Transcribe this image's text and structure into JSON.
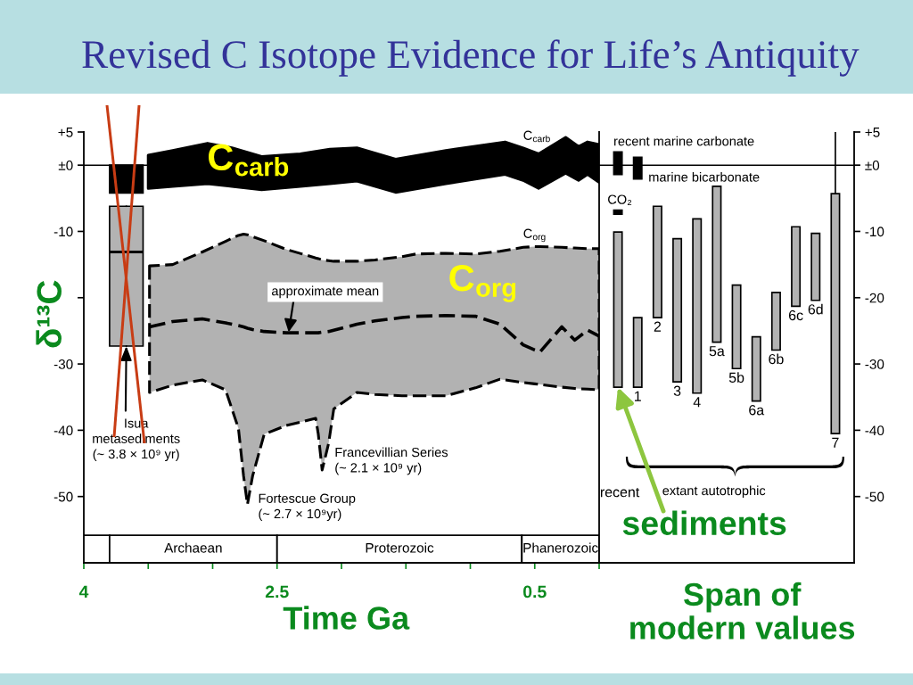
{
  "chart_data": [
    {
      "type": "line",
      "title": "Revised C Isotope Evidence for Life’s Antiquity",
      "xlabel": "Time Ga",
      "ylabel": "δ¹³C",
      "xlim": [
        4,
        0
      ],
      "xticks": [
        4,
        {
          "value": 3.5,
          "label": null
        },
        {
          "value": 3,
          "label": null
        },
        2.5,
        {
          "value": 2,
          "label": null
        },
        {
          "value": 1.5,
          "label": null
        },
        {
          "value": 1,
          "label": null
        },
        0.5,
        {
          "value": 0,
          "label": null
        }
      ],
      "ylim": [
        -60,
        5
      ],
      "yticks": [
        {
          "value": 5,
          "label": "+5"
        },
        {
          "value": 0,
          "label": "±0"
        },
        -10,
        {
          "value": -20,
          "label": null
        },
        -30,
        -40,
        -50
      ],
      "series": [
        {
          "type": "line",
          "name": "C$_{carb}$",
          "color": "#000000",
          "x": [
            3.5,
            3.31,
            3.04,
            2.85,
            2.62,
            2.32,
            2.09,
            1.88,
            1.58,
            1.19,
            0.73,
            0.59,
            0.47,
            0.26,
            0.16,
            0.09,
            0
          ],
          "values": [
            null,
            null,
            null,
            null,
            null,
            null,
            null,
            null,
            null,
            null,
            null,
            null,
            null,
            null,
            null,
            null,
            null
          ],
          "lower": [
            -3.5,
            -3.2,
            -2.8,
            -3.2,
            -3.7,
            -3.2,
            -2.8,
            -2.4,
            -4.1,
            -2.8,
            -1.4,
            -2.3,
            -3.5,
            -1.2,
            -2.3,
            -1.4,
            -2.6
          ],
          "upper": [
            1.5,
            2.2,
            3.3,
            2.6,
            1.3,
            1.7,
            2.4,
            2.6,
            0.9,
            2.2,
            3.5,
            2.6,
            1.7,
            4.2,
            2.8,
            3.5,
            3.1
          ]
        },
        {
          "type": "line",
          "name": "C$_{org}$",
          "color": "#000000",
          "line_style": "dashed",
          "x": [
            3.49,
            3.31,
            3.08,
            2.9,
            2.8,
            2.76,
            2.73,
            2.69,
            2.6,
            2.43,
            2.2,
            2.18,
            2.15,
            2.1,
            2.06,
            1.88,
            1.74,
            1.53,
            1.42,
            1.19,
            0.96,
            0.77,
            0.59,
            0.5,
            0.46,
            0.29,
            0.19,
            0.09,
            0
          ],
          "values": [
            -24.4,
            -23.6,
            -23.2,
            -23.8,
            -24.2,
            -24.4,
            -24.6,
            -24.8,
            -25.1,
            -25.3,
            -25.3,
            -25.3,
            -25.2,
            -25.1,
            -24.9,
            -24.0,
            -23.5,
            -23.0,
            -22.8,
            -22.7,
            -22.8,
            -24.0,
            -27.1,
            -27.9,
            -28.2,
            -24.4,
            -26.4,
            -24.9,
            -25.8
          ],
          "lower": [
            -34.3,
            -33.2,
            -32.4,
            -33.9,
            -39.7,
            -46.9,
            -51.2,
            -46.9,
            -40.6,
            -39.3,
            -38.2,
            -40.6,
            -46.0,
            -42.0,
            -36.8,
            -34.3,
            -34.6,
            -34.8,
            -34.8,
            -34.8,
            -33.6,
            -32.3,
            -32.8,
            -33.0,
            -33.1,
            -33.5,
            -33.7,
            -33.8,
            -33.9
          ],
          "upper": [
            -15.2,
            -15.0,
            -13.1,
            -11.5,
            -10.6,
            -10.4,
            -10.5,
            -10.8,
            -11.4,
            -12.7,
            -14.0,
            -14.1,
            -14.3,
            -14.4,
            -14.5,
            -14.5,
            -14.3,
            -13.8,
            -13.4,
            -13.3,
            -13.4,
            -13.0,
            -12.4,
            -12.3,
            -12.3,
            -12.4,
            -12.5,
            -12.6,
            -12.6
          ]
        },
        {
          "type": "bar",
          "color": "#000000",
          "x": [
            3.67
          ],
          "base": [
            -4.2
          ],
          "values": [
            4.2
          ]
        },
        {
          "type": "box",
          "color": "#b3b3b3",
          "x": [
            3.67
          ],
          "boxes": [
            {
              "low": -27.3,
              "q1": -27.3,
              "median": -13.1,
              "q3": -6.2,
              "high": -6.2
            }
          ]
        }
      ],
      "ref_lines": [
        {
          "axis": "y",
          "value": 0
        }
      ],
      "bands": [
        {
          "axis": "x",
          "from": 4,
          "to": 3.8
        },
        {
          "axis": "x",
          "from": 3.8,
          "to": 2.5,
          "label": "Archaean"
        },
        {
          "axis": "x",
          "from": 2.5,
          "to": 0.6,
          "label": "Proterozoic"
        },
        {
          "axis": "x",
          "from": 0.6,
          "to": 0,
          "label": "Phanerozoic"
        }
      ],
      "annotations": [
        "C$_{carb}$",
        "C$_{org}$",
        {
          "text": "approximate mean",
          "x": 2.41,
          "y": -25.2
        },
        {
          "text": "Isua\nmetasediments\n(~ 3.8 × 10⁹ yr)",
          "x": 3.67,
          "y": -27.3
        },
        {
          "text": "Fortescue Group\n(~ 2.7 × 10⁹yr)",
          "x": 2.73,
          "y": -51.2
        },
        {
          "text": "Francevillian Series\n(~ 2.1 × 10⁹ yr)",
          "x": 2.15,
          "y": -46.0
        }
      ]
    },
    {
      "type": "bar",
      "xlabel": "Span of\nmodern values",
      "categories": [
        "recent",
        "1",
        "2",
        "3",
        "4",
        "5a",
        "5b",
        "6a",
        "6b",
        "6c",
        "6d",
        "7"
      ],
      "ylim": [
        -60,
        5
      ],
      "yticks": [
        {
          "value": 5,
          "label": "+5"
        },
        {
          "value": 0,
          "label": "±0"
        },
        -10,
        -20,
        -30,
        -40,
        -50
      ],
      "tick_labels": "y",
      "series": [
        {
          "color": "#b3b3b3",
          "base": [
            -33.5,
            -33.5,
            -23.0,
            -32.7,
            -34.4,
            -26.7,
            -30.7,
            -35.6,
            -27.9,
            -21.3,
            -20.4,
            -40.5
          ],
          "values": [
            23.4,
            10.5,
            16.8,
            21.6,
            26.3,
            23.5,
            12.6,
            9.7,
            8.7,
            12.0,
            10.1,
            36.2
          ],
          "errors": [
            null,
            null,
            null,
            null,
            null,
            null,
            null,
            null,
            null,
            null,
            null,
            [
              -4.3,
              5
            ]
          ]
        },
        {
          "color": "#000000",
          "base": [
            -1.4,
            -2.1,
            null,
            null,
            null,
            null,
            null,
            null,
            null,
            null,
            null,
            null
          ],
          "values": [
            3.4,
            3.3,
            null,
            null,
            null,
            null,
            null,
            null,
            null,
            null,
            null,
            null
          ]
        },
        {
          "color": "#000000",
          "base": [
            -7.4,
            null,
            null,
            null,
            null,
            null,
            null,
            null,
            null,
            null,
            null,
            null
          ],
          "values": [
            0.6,
            null,
            null,
            null,
            null,
            null,
            null,
            null,
            null,
            null,
            null,
            null
          ]
        }
      ],
      "ref_lines": [
        {
          "axis": "y",
          "value": 0
        }
      ],
      "annotations": [
        {
          "text": "recent marine carbonate",
          "x": "recent",
          "y": 2.0
        },
        {
          "text": "marine bicarbonate",
          "x": "1",
          "y": -2.1
        },
        {
          "text": "CO₂",
          "x": "recent",
          "y": -6.8
        },
        "extant autotrophic",
        "sediments"
      ]
    }
  ]
}
